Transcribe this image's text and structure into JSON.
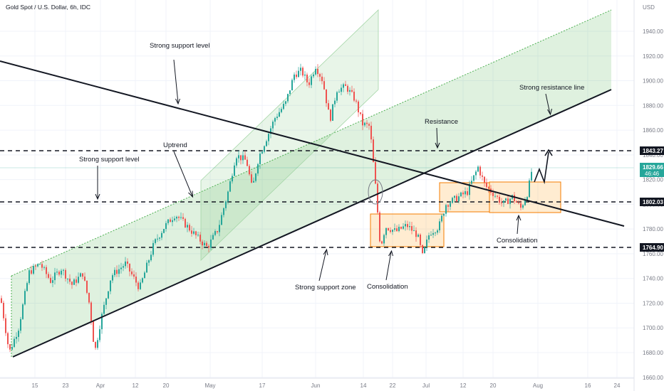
{
  "header": {
    "title": "Gold Spot / U.S. Dollar, 6h, IDC"
  },
  "chart_data": {
    "type": "candlestick",
    "title": "Gold Spot / U.S. Dollar, 6h, IDC",
    "currency": "USD",
    "ylim": [
      1660,
      1960
    ],
    "yticks": [
      1660,
      1680,
      1700,
      1720,
      1740,
      1760,
      1780,
      1800,
      1820,
      1840,
      1860,
      1880,
      1900,
      1920,
      1940
    ],
    "xticks": [
      "15",
      "23",
      "Apr",
      "12",
      "20",
      "May",
      "17",
      "Jun",
      "14",
      "22",
      "Jul",
      "12",
      "20",
      "Aug",
      "16",
      "24"
    ],
    "price_path": [
      [
        0,
        1724
      ],
      [
        12,
        1680
      ],
      [
        25,
        1700
      ],
      [
        40,
        1745
      ],
      [
        55,
        1752
      ],
      [
        70,
        1738
      ],
      [
        85,
        1748
      ],
      [
        100,
        1735
      ],
      [
        115,
        1744
      ],
      [
        125,
        1718
      ],
      [
        132,
        1680
      ],
      [
        140,
        1705
      ],
      [
        155,
        1742
      ],
      [
        175,
        1752
      ],
      [
        195,
        1732
      ],
      [
        215,
        1768
      ],
      [
        230,
        1782
      ],
      [
        245,
        1792
      ],
      [
        262,
        1782
      ],
      [
        278,
        1772
      ],
      [
        290,
        1765
      ],
      [
        305,
        1780
      ],
      [
        320,
        1812
      ],
      [
        330,
        1840
      ],
      [
        345,
        1835
      ],
      [
        353,
        1812
      ],
      [
        362,
        1838
      ],
      [
        372,
        1852
      ],
      [
        385,
        1870
      ],
      [
        400,
        1882
      ],
      [
        412,
        1905
      ],
      [
        422,
        1908
      ],
      [
        432,
        1897
      ],
      [
        442,
        1912
      ],
      [
        452,
        1900
      ],
      [
        462,
        1868
      ],
      [
        472,
        1893
      ],
      [
        485,
        1895
      ],
      [
        497,
        1885
      ],
      [
        508,
        1865
      ],
      [
        518,
        1863
      ],
      [
        526,
        1815
      ],
      [
        533,
        1765
      ],
      [
        540,
        1782
      ],
      [
        555,
        1778
      ],
      [
        570,
        1783
      ],
      [
        585,
        1775
      ],
      [
        592,
        1758
      ],
      [
        602,
        1777
      ],
      [
        615,
        1782
      ],
      [
        625,
        1800
      ],
      [
        640,
        1805
      ],
      [
        655,
        1810
      ],
      [
        670,
        1830
      ],
      [
        680,
        1815
      ],
      [
        693,
        1808
      ],
      [
        705,
        1800
      ],
      [
        718,
        1806
      ],
      [
        730,
        1797
      ],
      [
        740,
        1810
      ],
      [
        746,
        1829.66
      ]
    ],
    "levels": [
      {
        "name": "resistance",
        "value": 1843.27,
        "color": "#131722"
      },
      {
        "name": "current",
        "value": 1829.66,
        "color": "#26a69a"
      },
      {
        "name": "support",
        "value": 1802.03,
        "color": "#131722"
      },
      {
        "name": "support-zone",
        "value": 1764.9,
        "color": "#131722"
      }
    ],
    "price_labels": {
      "resistance": "1843.27",
      "current": "1829.66",
      "countdown": "46:46",
      "support": "1802.03",
      "support_zone": "1764.90"
    },
    "annotations": {
      "strong_support_level_top": "Strong support level",
      "strong_support_level_left": "Strong support level",
      "uptrend": "Uptrend",
      "resistance": "Resistance",
      "strong_resistance_line": "Strong resistance line",
      "strong_support_zone": "Strong support zone",
      "consolidation_left": "Consolidation",
      "consolidation_right": "Consolidation"
    }
  }
}
